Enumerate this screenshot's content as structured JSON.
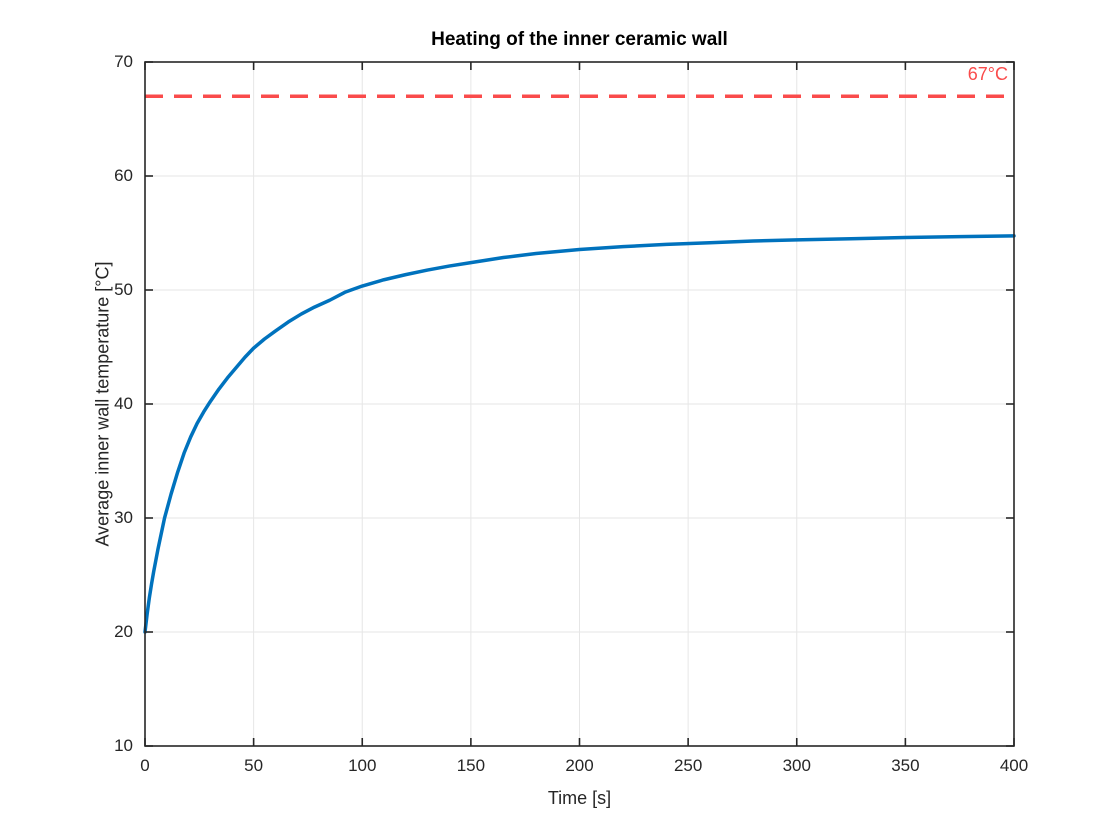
{
  "figure": {
    "background": "#ffffff"
  },
  "chart_data": {
    "type": "line",
    "title": "Heating of the inner ceramic wall",
    "xlabel": "Time [s]",
    "ylabel": "Average inner wall temperature [°C]",
    "xlim": [
      0,
      400
    ],
    "ylim": [
      10,
      70
    ],
    "x_ticks": [
      0,
      50,
      100,
      150,
      200,
      250,
      300,
      350,
      400
    ],
    "y_ticks": [
      10,
      20,
      30,
      40,
      50,
      60,
      70
    ],
    "grid": true,
    "legend": "none",
    "colors": {
      "curve": "#0072BD",
      "threshold": "#FA4B4B",
      "grid": "#E6E6E6",
      "axis": "#262626"
    },
    "series": [
      {
        "name": "inner-wall-temperature",
        "color": "#0072BD",
        "style": "solid",
        "line_width": 3.5,
        "points": [
          [
            0,
            20.0
          ],
          [
            1,
            21.6
          ],
          [
            2,
            23.0
          ],
          [
            3,
            24.2
          ],
          [
            4,
            25.3
          ],
          [
            5,
            26.3
          ],
          [
            6,
            27.3
          ],
          [
            7,
            28.2
          ],
          [
            8,
            29.1
          ],
          [
            9,
            30.0
          ],
          [
            12,
            32.1
          ],
          [
            15,
            34.0
          ],
          [
            18,
            35.7
          ],
          [
            21,
            37.1
          ],
          [
            24,
            38.3
          ],
          [
            27,
            39.3
          ],
          [
            30,
            40.2
          ],
          [
            34,
            41.3
          ],
          [
            38,
            42.3
          ],
          [
            42,
            43.2
          ],
          [
            46,
            44.1
          ],
          [
            50,
            44.9
          ],
          [
            55,
            45.7
          ],
          [
            60,
            46.4
          ],
          [
            66,
            47.2
          ],
          [
            72,
            47.9
          ],
          [
            78,
            48.5
          ],
          [
            85,
            49.1
          ],
          [
            92,
            49.8
          ],
          [
            100,
            50.35
          ],
          [
            110,
            50.9
          ],
          [
            120,
            51.35
          ],
          [
            130,
            51.75
          ],
          [
            140,
            52.1
          ],
          [
            150,
            52.4
          ],
          [
            165,
            52.85
          ],
          [
            180,
            53.2
          ],
          [
            200,
            53.55
          ],
          [
            220,
            53.8
          ],
          [
            240,
            54.0
          ],
          [
            260,
            54.15
          ],
          [
            280,
            54.3
          ],
          [
            300,
            54.4
          ],
          [
            325,
            54.5
          ],
          [
            350,
            54.6
          ],
          [
            375,
            54.68
          ],
          [
            400,
            54.75
          ]
        ]
      },
      {
        "name": "threshold-67C",
        "color": "#FA4B4B",
        "style": "dashed",
        "line_width": 3.5,
        "points": [
          [
            0,
            67
          ],
          [
            400,
            67
          ]
        ]
      }
    ],
    "annotation": {
      "text": "67°C",
      "color": "#FA4B4B",
      "x": 400,
      "y": 67,
      "position": "above-right"
    }
  }
}
